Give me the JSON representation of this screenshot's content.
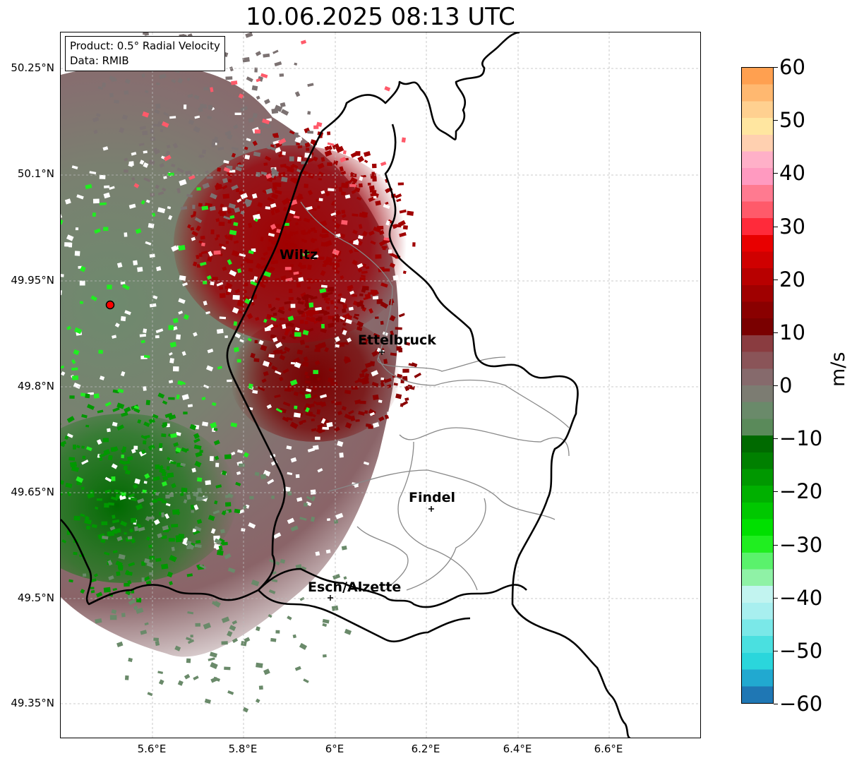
{
  "title": "10.06.2025 08:13 UTC",
  "info": {
    "product": "Product: 0.5° Radial Velocity",
    "data": "Data: RMIB"
  },
  "y_ticks": [
    "50.25°N",
    "50.1°N",
    "49.95°N",
    "49.8°N",
    "49.65°N",
    "49.5°N",
    "49.35°N"
  ],
  "x_ticks": [
    "5.6°E",
    "5.8°E",
    "6°E",
    "6.2°E",
    "6.4°E",
    "6.6°E"
  ],
  "cities": {
    "wiltz": "Wiltz",
    "ettelbruck": "Ettelbruck",
    "findel": "Findel",
    "esch": "Esch/Alzette"
  },
  "colorbar": {
    "ticks": [
      "60",
      "50",
      "40",
      "30",
      "20",
      "10",
      "0",
      "−10",
      "−20",
      "−30",
      "−40",
      "−50",
      "−60"
    ],
    "label": "m/s",
    "range": [
      -60,
      60
    ],
    "colors": [
      "#1f77b4",
      "#21a9d0",
      "#2ad6dc",
      "#4ae0e0",
      "#7ae8e8",
      "#a8efef",
      "#c2f4f0",
      "#8ff2a6",
      "#5af26c",
      "#20ee20",
      "#00e000",
      "#00c800",
      "#00b000",
      "#009800",
      "#008000",
      "#006a00",
      "#5a8a5a",
      "#6a8a6a",
      "#7c7c72",
      "#866a6c",
      "#8a5458",
      "#8a3c40",
      "#7a0000",
      "#8a0000",
      "#a00000",
      "#b80000",
      "#d00000",
      "#e80000",
      "#ff2a3a",
      "#ff5a6a",
      "#ff7a90",
      "#ff9ac0",
      "#ffb0c8",
      "#ffd0b0",
      "#ffe6a0",
      "#ffd090",
      "#ffb870",
      "#ffa050"
    ]
  },
  "radar_site": {
    "color": "#ff0000"
  }
}
